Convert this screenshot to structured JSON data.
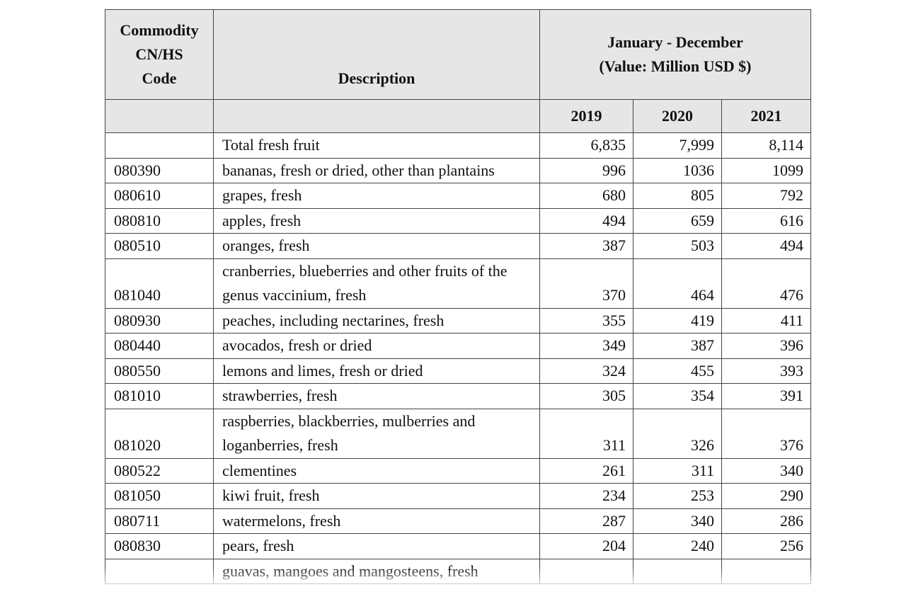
{
  "table": {
    "header": {
      "code": [
        "Commodity",
        "CN/HS",
        "Code"
      ],
      "description": "Description",
      "period": [
        "January - December",
        "(Value: Million USD $)"
      ],
      "years": [
        "2019",
        "2020",
        "2021"
      ]
    },
    "rows": [
      [
        "",
        "Total fresh fruit",
        "6,835",
        "7,999",
        "8,114"
      ],
      [
        "080390",
        "bananas, fresh or dried, other than plantains",
        "996",
        "1036",
        "1099"
      ],
      [
        "080610",
        "grapes, fresh",
        "680",
        "805",
        "792"
      ],
      [
        "080810",
        "apples, fresh",
        "494",
        "659",
        "616"
      ],
      [
        "080510",
        "oranges, fresh",
        "387",
        "503",
        "494"
      ],
      [
        "081040",
        "cranberries, blueberries and other fruits of the genus vaccinium, fresh",
        "370",
        "464",
        "476"
      ],
      [
        "080930",
        "peaches, including nectarines, fresh",
        "355",
        "419",
        "411"
      ],
      [
        "080440",
        "avocados, fresh or dried",
        "349",
        "387",
        "396"
      ],
      [
        "080550",
        "lemons and limes, fresh or dried",
        "324",
        "455",
        "393"
      ],
      [
        "081010",
        "strawberries, fresh",
        "305",
        "354",
        "391"
      ],
      [
        "081020",
        "raspberries, blackberries, mulberries and loganberries, fresh",
        "311",
        "326",
        "376"
      ],
      [
        "080522",
        "clementines",
        "261",
        "311",
        "340"
      ],
      [
        "081050",
        "kiwi fruit, fresh",
        "234",
        "253",
        "290"
      ],
      [
        "080711",
        "watermelons, fresh",
        "287",
        "340",
        "286"
      ],
      [
        "080830",
        "pears, fresh",
        "204",
        "240",
        "256"
      ],
      [
        "",
        "guavas, mangoes and mangosteens, fresh",
        "",
        "",
        ""
      ]
    ]
  }
}
